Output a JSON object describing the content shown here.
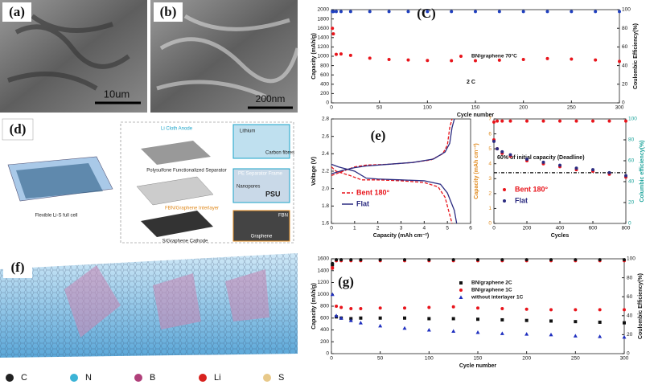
{
  "panel_a": {
    "label": "(a)",
    "scale": "10um"
  },
  "panel_b": {
    "label": "(b)",
    "scale": "200nm"
  },
  "panel_d": {
    "label": "(d)",
    "anode": "Li Cloth Anode",
    "lithium": "Lithium",
    "fibres": "Carbon fibres",
    "separator": "Polysulfone Functionalized Separator",
    "frame": "PE Separator Frame",
    "nanopores": "Nanopores",
    "psu": "PSU",
    "interlayer": "FBN/Graphene Interlayer",
    "fbn": "FBN",
    "cathode": "S/Graphene  Cathode",
    "graphene": "Graphene",
    "cell": "Flexible Li-S full cell"
  },
  "panel_f": {
    "label": "(f)",
    "legend": [
      "C",
      "N",
      "B",
      "Li",
      "S"
    ]
  },
  "chart_data": [
    {
      "type": "scatter",
      "label": "(C)",
      "xlabel": "Cycle number",
      "ylabel": "Capacity (mAh/g)",
      "y2label": "Coulombic Efficiency(%)",
      "annotation": "2 C",
      "x": [
        1,
        2,
        5,
        10,
        20,
        40,
        60,
        80,
        100,
        125,
        150,
        175,
        200,
        225,
        250,
        275,
        300
      ],
      "xlim": [
        0,
        300
      ],
      "xticks": [
        0,
        50,
        100,
        150,
        200,
        250,
        300
      ],
      "ylim": [
        0,
        2000
      ],
      "yticks": [
        0,
        200,
        400,
        600,
        800,
        1000,
        1200,
        1400,
        1600,
        1800,
        2000
      ],
      "y2lim": [
        0,
        100
      ],
      "y2ticks": [
        0,
        20,
        40,
        60,
        80,
        100
      ],
      "series": [
        {
          "name": "BN/graphene 70°C",
          "color": "#e8141b",
          "marker": "circle",
          "values": [
            1600,
            1480,
            1040,
            1050,
            1020,
            960,
            930,
            920,
            910,
            905,
            905,
            915,
            930,
            950,
            940,
            920,
            890
          ]
        },
        {
          "color": "#1f3fbf",
          "marker": "circle",
          "axis": "y2",
          "values": [
            98,
            98,
            98,
            98,
            98,
            98,
            98,
            98,
            98,
            98,
            98,
            98,
            98,
            98,
            98,
            98,
            98
          ]
        }
      ]
    },
    {
      "type": "line",
      "label": "(e)",
      "xlabel": "Capacity (mAh cm⁻²)",
      "ylabel": "Voltage (V)",
      "xlim": [
        0,
        6
      ],
      "xticks": [
        0,
        1,
        2,
        3,
        4,
        5,
        6
      ],
      "ylim": [
        1.6,
        2.8
      ],
      "yticks": [
        1.6,
        1.8,
        {
          "value": 2,
          "label": "2.0"
        },
        2.2,
        2.4,
        2.6,
        2.8
      ],
      "series": [
        {
          "name": "Bent 180°",
          "color": "#e8141b",
          "dash": true,
          "x": [
            0,
            0.2,
            0.8,
            1.3,
            2,
            3,
            4,
            4.6,
            4.9,
            5.1,
            5.2,
            null,
            0,
            0.5,
            1,
            1.5,
            2.5,
            3.5,
            4.3,
            4.8,
            5,
            5.1,
            5.2
          ],
          "values": [
            2.25,
            2.2,
            2.15,
            2.1,
            2.1,
            2.09,
            2.07,
            2.02,
            1.9,
            1.7,
            1.6,
            null,
            2.15,
            2.2,
            2.25,
            2.27,
            2.28,
            2.3,
            2.33,
            2.4,
            2.5,
            2.7,
            2.8
          ]
        },
        {
          "name": "Flat",
          "color": "#2b2b80",
          "x": [
            0,
            0.3,
            1,
            1.5,
            2,
            3,
            4,
            4.7,
            5,
            5.3,
            5.4,
            null,
            0,
            0.5,
            1,
            1.5,
            2.5,
            3.5,
            4.4,
            4.9,
            5.1,
            5.2,
            5.3
          ],
          "values": [
            2.28,
            2.25,
            2.2,
            2.12,
            2.11,
            2.1,
            2.09,
            2.05,
            1.95,
            1.75,
            1.6,
            null,
            2.17,
            2.21,
            2.24,
            2.26,
            2.28,
            2.3,
            2.34,
            2.42,
            2.52,
            2.7,
            2.8
          ]
        }
      ]
    },
    {
      "type": "scatter",
      "xlabel": "Cycles",
      "ylabel": "Capacity (mAh cm⁻²)",
      "y2label": "Columbic efficiency(%)",
      "ycolor": "#e08a1e",
      "y2color": "#1aa39a",
      "annotation": "60% of initial capacity (Deadline)",
      "hline": 3.4,
      "x": [
        0,
        20,
        50,
        100,
        200,
        300,
        400,
        500,
        600,
        700,
        800
      ],
      "xlim": [
        0,
        800
      ],
      "xticks": [
        0,
        200,
        400,
        600,
        800
      ],
      "ylim": [
        0,
        7
      ],
      "yticks": [
        0,
        1,
        2,
        3,
        4,
        5,
        6,
        7
      ],
      "y2lim": [
        0,
        100
      ],
      "y2ticks": [
        0,
        20,
        40,
        60,
        80,
        100
      ],
      "series": [
        {
          "name": "Bent 180°",
          "color": "#e8141b",
          "marker": "circle",
          "values": [
            5.6,
            5,
            4.7,
            4.5,
            4.2,
            4,
            3.8,
            3.6,
            3.5,
            3.3,
            3.1
          ]
        },
        {
          "name": "Flat",
          "color": "#2b2b80",
          "marker": "circle",
          "values": [
            5.5,
            5,
            4.8,
            4.6,
            4.3,
            4.1,
            3.9,
            3.7,
            3.6,
            3.4,
            3.2
          ]
        },
        {
          "color": "#e8141b",
          "marker": "circle",
          "axis": "y2",
          "values": [
            97,
            98,
            98,
            98,
            98,
            98,
            98,
            98,
            98,
            98,
            98
          ]
        }
      ]
    },
    {
      "type": "scatter",
      "label": "(g)",
      "xlabel": "Cycle number",
      "ylabel": "Capacity (mAh/g)",
      "y2label": "Coulombic Efficiency(%)",
      "x": [
        1,
        5,
        10,
        20,
        30,
        50,
        75,
        100,
        125,
        150,
        175,
        200,
        225,
        250,
        275,
        300
      ],
      "xlim": [
        0,
        300
      ],
      "xticks": [
        0,
        50,
        100,
        150,
        200,
        250,
        300
      ],
      "ylim": [
        0,
        1600
      ],
      "yticks": [
        0,
        200,
        400,
        600,
        800,
        1000,
        1200,
        1400,
        1600
      ],
      "y2lim": [
        0,
        100
      ],
      "y2ticks": [
        0,
        20,
        40,
        60,
        80,
        100
      ],
      "series": [
        {
          "name": "BN/graphene 2C",
          "color": "#111111",
          "marker": "square",
          "values": [
            1500,
            620,
            600,
            590,
            600,
            600,
            600,
            590,
            590,
            580,
            570,
            560,
            550,
            540,
            530,
            520
          ]
        },
        {
          "name": "BN/graphene 1C",
          "color": "#e8141b",
          "marker": "circle",
          "values": [
            1450,
            800,
            780,
            760,
            760,
            770,
            770,
            780,
            790,
            770,
            760,
            750,
            740,
            740,
            740,
            740
          ]
        },
        {
          "name": "without interlayer 1C",
          "color": "#1f2fbf",
          "marker": "triangle",
          "values": [
            1000,
            640,
            600,
            560,
            520,
            470,
            430,
            400,
            380,
            360,
            340,
            330,
            320,
            300,
            290,
            280
          ]
        },
        {
          "color": "#e8141b",
          "marker": "circle",
          "axis": "y2",
          "values": [
            90,
            98,
            98,
            98,
            98,
            98,
            98,
            98,
            98,
            98,
            98,
            98,
            98,
            98,
            98,
            98
          ]
        },
        {
          "color": "#111111",
          "marker": "circle",
          "axis": "y2",
          "values": [
            95,
            99,
            99,
            99,
            99,
            99,
            99,
            99,
            99,
            99,
            99,
            99,
            99,
            99,
            99,
            99
          ]
        }
      ]
    }
  ]
}
